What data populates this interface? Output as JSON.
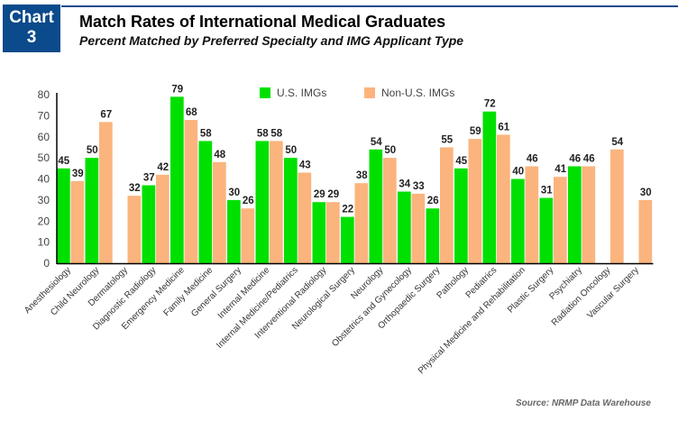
{
  "header": {
    "badge_line1": "Chart",
    "badge_line2": "3",
    "title": "Match Rates of International Medical Graduates",
    "subtitle": "Percent Matched by Preferred Specialty and IMG Applicant Type"
  },
  "source": "Source: NRMP Data Warehouse",
  "chart_data": {
    "type": "bar",
    "title": "Match Rates of International Medical Graduates",
    "subtitle": "Percent Matched by Preferred Specialty and IMG Applicant Type",
    "xlabel": "",
    "ylabel": "",
    "ylim": [
      0,
      80
    ],
    "yticks": [
      0,
      10,
      20,
      30,
      40,
      50,
      60,
      70,
      80
    ],
    "grid": false,
    "legend": "top-center",
    "categories": [
      "Anesthesiology",
      "Child Neurology",
      "Dermatology",
      "Diagnostic Radiology",
      "Emergency Medicine",
      "Family Medicine",
      "General Surgery",
      "Internal Medicine",
      "Internal Medicine/Pediatrics",
      "Interventional Radiology",
      "Neurological Surgery",
      "Neurology",
      "Obstetrics and Gynecology",
      "Orthopaedic Surgery",
      "Pathology",
      "Pediatrics",
      "Physical Medicine and Rehabilitation",
      "Plastic Surgery",
      "Psychiatry",
      "Radiation Oncology",
      "Vascular Surgery"
    ],
    "series": [
      {
        "name": "U.S. IMGs",
        "color": "#00e000",
        "values": [
          45,
          50,
          null,
          37,
          79,
          58,
          30,
          58,
          50,
          29,
          22,
          54,
          34,
          26,
          45,
          72,
          40,
          31,
          46,
          null,
          null
        ]
      },
      {
        "name": "Non-U.S. IMGs",
        "color": "#fbb47d",
        "values": [
          39,
          67,
          32,
          42,
          68,
          48,
          26,
          58,
          43,
          29,
          38,
          50,
          33,
          55,
          59,
          61,
          46,
          41,
          46,
          54,
          30
        ]
      }
    ]
  }
}
